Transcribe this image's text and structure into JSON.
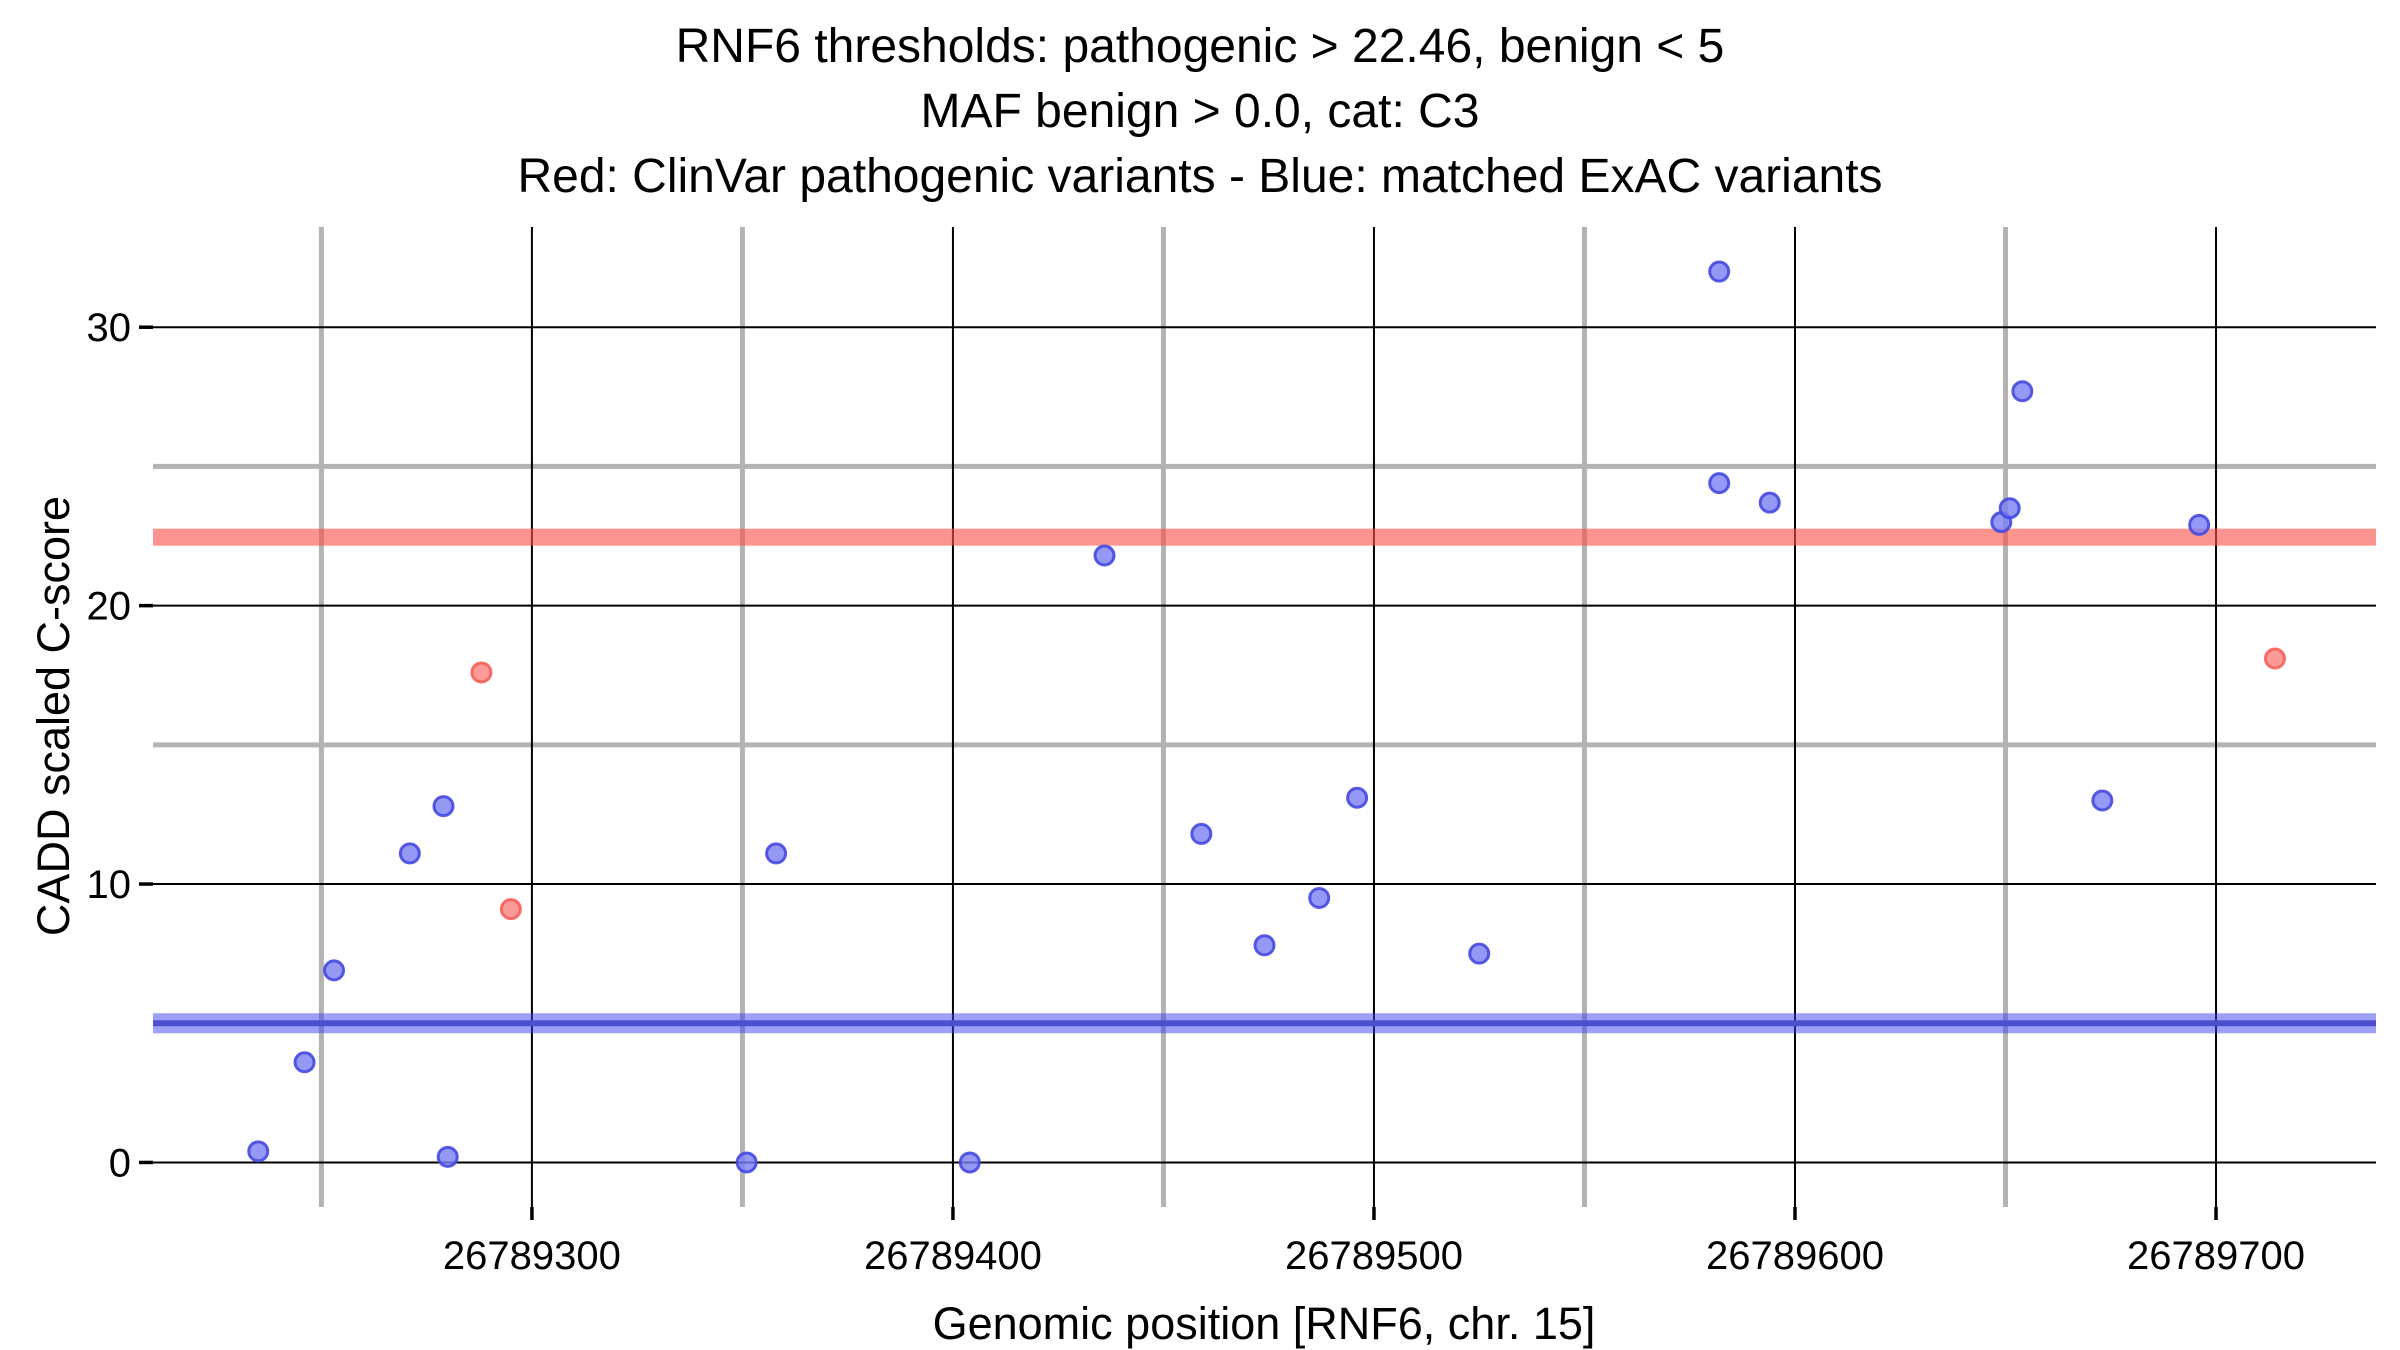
{
  "figure": {
    "title_line1": "RNF6 thresholds: pathogenic > 22.46, benign < 5",
    "title_line2": "MAF benign > 0.0, cat: C3",
    "title_line3": "Red: ClinVar pathogenic variants - Blue: matched ExAC variants"
  },
  "chart_data": {
    "type": "scatter",
    "title": "RNF6 thresholds: pathogenic > 22.46, benign < 5\nMAF benign > 0.0, cat: C3\nRed: ClinVar pathogenic variants - Blue: matched ExAC variants",
    "xlabel": "Genomic position [RNF6, chr. 15]",
    "ylabel": "CADD scaled C-score",
    "xlim": [
      26789210,
      26789738
    ],
    "ylim": [
      -1.6,
      33.6
    ],
    "grid": true,
    "legend": "none",
    "x_major_ticks": [
      26789300,
      26789400,
      26789500,
      26789600,
      26789700
    ],
    "x_tick_labels": [
      "26789300",
      "26789400",
      "26789500",
      "26789600",
      "26789700"
    ],
    "x_minor_gridlines": [
      26789250,
      26789350,
      26789450,
      26789550,
      26789650
    ],
    "y_major_ticks": [
      0,
      10,
      20,
      30
    ],
    "y_tick_labels": [
      "0",
      "10",
      "20",
      "30"
    ],
    "y_minor_gridlines": [
      5,
      15,
      25
    ],
    "colors": {
      "major_gridline": "#000000",
      "minor_gridline": "#b3b3b3",
      "tick": "#000000",
      "pathogenic_band": "rgba(249,80,73,0.62)",
      "benign_band_outer": "rgba(62,66,240,0.5)",
      "benign_band_core": "#4c50cd",
      "pathogenic_point_fill": "#fa827e",
      "pathogenic_point_stroke": "#f75f59",
      "exac_point_fill": "#7b7ef3",
      "exac_point_stroke": "#4549e0"
    },
    "thresholds": {
      "pathogenic_gt": 22.46,
      "benign_lt": 5.0
    },
    "series": [
      {
        "name": "matched ExAC variants",
        "role": "exac",
        "points": [
          [
            26789235,
            0.4
          ],
          [
            26789246,
            3.6
          ],
          [
            26789253,
            6.9
          ],
          [
            26789271,
            11.1
          ],
          [
            26789279,
            12.8
          ],
          [
            26789280,
            0.2
          ],
          [
            26789351,
            0.0
          ],
          [
            26789358,
            11.1
          ],
          [
            26789404,
            0.0
          ],
          [
            26789436,
            21.8
          ],
          [
            26789459,
            11.8
          ],
          [
            26789474,
            7.8
          ],
          [
            26789487,
            9.5
          ],
          [
            26789496,
            13.1
          ],
          [
            26789525,
            7.5
          ],
          [
            26789582,
            32.0
          ],
          [
            26789582,
            24.4
          ],
          [
            26789594,
            23.7
          ],
          [
            26789649,
            23.0
          ],
          [
            26789651,
            23.5
          ],
          [
            26789654,
            27.7
          ],
          [
            26789673,
            13.0
          ],
          [
            26789696,
            22.9
          ]
        ]
      },
      {
        "name": "ClinVar pathogenic variants",
        "role": "pathogenic",
        "points": [
          [
            26789288,
            17.6
          ],
          [
            26789295,
            9.1
          ],
          [
            26789714,
            18.1
          ]
        ]
      }
    ]
  }
}
